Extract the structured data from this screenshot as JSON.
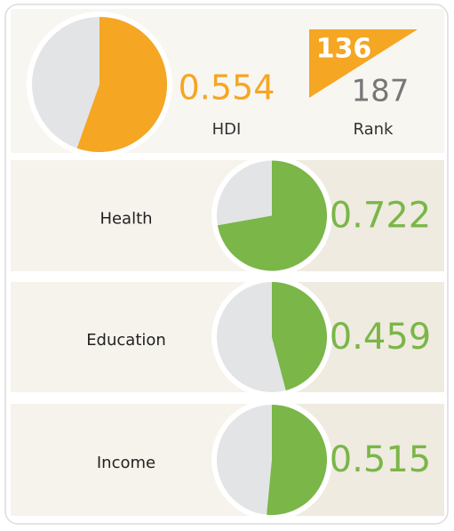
{
  "hdi": {
    "value": 0.554,
    "label": "HDI"
  },
  "rank": {
    "value": 136,
    "total": 187,
    "label": "Rank"
  },
  "indices": [
    {
      "label": "Health",
      "value": 0.722
    },
    {
      "label": "Education",
      "value": 0.459
    },
    {
      "label": "Income",
      "value": 0.515
    }
  ]
}
